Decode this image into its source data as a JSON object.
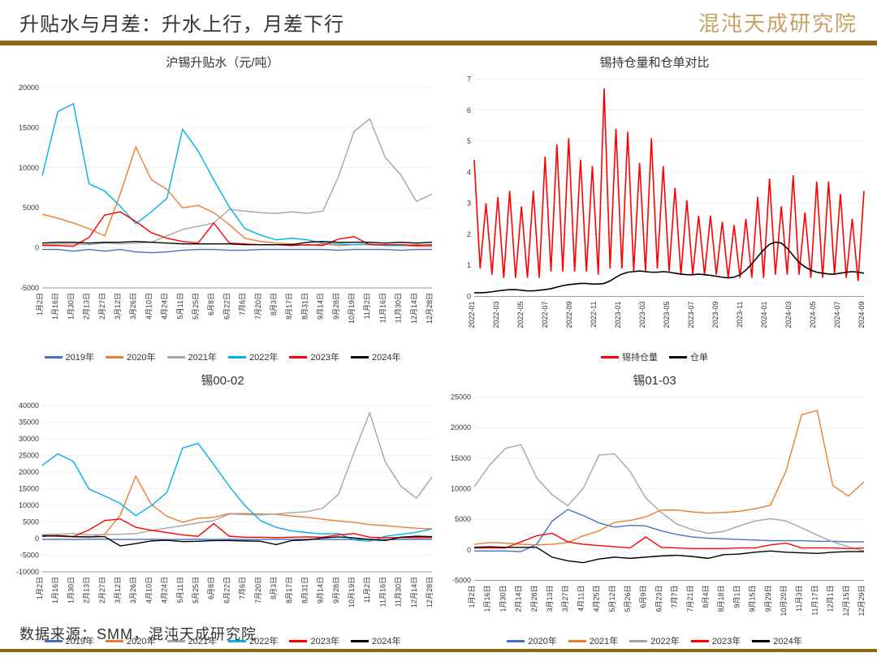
{
  "header": {
    "title": "升贴水与月差：升水上行，月差下行",
    "institute": "混沌天成研究院"
  },
  "footer": "数据来源：SMM，混沌天成研究院",
  "colors": {
    "2019": "#4472c4",
    "2020": "#ed7d31",
    "2021": "#a5a5a5",
    "2022": "#00b0f0",
    "2023": "#ff0000",
    "2024": "#000000",
    "position": "#ff0000",
    "warrant": "#000000",
    "grid": "#e0e0e0",
    "axis": "#999999",
    "bg": "#ffffff",
    "accent_bar": "#8b6914"
  },
  "charts": {
    "premium": {
      "title": "沪锡升贴水（元/吨）",
      "ylim": [
        -5000,
        20000
      ],
      "yticks": [
        -5000,
        0,
        5000,
        10000,
        15000,
        20000
      ],
      "xlabels": [
        "1月2日",
        "1月16日",
        "1月30日",
        "2月13日",
        "2月27日",
        "3月12日",
        "3月26日",
        "4月10日",
        "4月24日",
        "5月11日",
        "5月25日",
        "6月8日",
        "6月22日",
        "7月6日",
        "7月20日",
        "8月3日",
        "8月17日",
        "8月31日",
        "9月14日",
        "9月28日",
        "10月19日",
        "11月2日",
        "11月16日",
        "11月30日",
        "12月14日",
        "12月28日"
      ],
      "series": {
        "2019": [
          -200,
          -200,
          -400,
          -200,
          -400,
          -200,
          -500,
          -600,
          -500,
          -300,
          -200,
          -200,
          -300,
          -300,
          -200,
          -200,
          -200,
          -200,
          -200,
          -300,
          -200,
          -200,
          -200,
          -300,
          -200,
          -200
        ],
        "2020": [
          4200,
          3700,
          3100,
          2400,
          1500,
          6700,
          12600,
          8500,
          7300,
          5000,
          5300,
          4400,
          2900,
          1200,
          800,
          600,
          500,
          300,
          500,
          300,
          400,
          400,
          300,
          300,
          200,
          200
        ],
        "2021": [
          400,
          500,
          500,
          400,
          600,
          500,
          600,
          700,
          1500,
          2300,
          2700,
          3100,
          4800,
          4600,
          4400,
          4300,
          4500,
          4300,
          4600,
          8900,
          14500,
          16100,
          11300,
          9100,
          5800,
          6700
        ],
        "2022": [
          9000,
          17000,
          18000,
          8000,
          7100,
          5200,
          3000,
          4500,
          6200,
          14800,
          12100,
          8500,
          5100,
          2400,
          1600,
          1000,
          1200,
          1000,
          600,
          500,
          400,
          500,
          300,
          300,
          400,
          300
        ],
        "2023": [
          300,
          300,
          200,
          1300,
          4100,
          4500,
          3300,
          1900,
          1200,
          800,
          600,
          3100,
          600,
          500,
          400,
          400,
          300,
          400,
          300,
          1100,
          1400,
          400,
          400,
          400,
          300,
          400
        ],
        "2024": [
          600,
          700,
          700,
          600,
          700,
          700,
          800,
          700,
          600,
          500,
          500,
          500,
          500,
          400,
          400,
          400,
          400,
          700,
          800,
          700,
          700,
          700,
          600,
          700,
          600,
          700
        ]
      },
      "legend": [
        "2019年",
        "2020年",
        "2021年",
        "2022年",
        "2023年",
        "2024年"
      ],
      "legend_colors": [
        "#4472c4",
        "#ed7d31",
        "#a5a5a5",
        "#00b0f0",
        "#ff0000",
        "#000000"
      ]
    },
    "position": {
      "title": "锡持仓量和仓单对比",
      "ylim": [
        0,
        7
      ],
      "yticks": [
        0,
        1,
        2,
        3,
        4,
        5,
        6,
        7
      ],
      "xlabels": [
        "2022-01",
        "2022-03",
        "2022-05",
        "2022-07",
        "2022-09",
        "2022-11",
        "2023-01",
        "2023-03",
        "2023-05",
        "2023-07",
        "2023-09",
        "2023-11",
        "2024-01",
        "2024-03",
        "2024-05",
        "2024-07",
        "2024-09"
      ],
      "series": {
        "position": [
          4.4,
          0.9,
          3.0,
          0.7,
          3.2,
          0.6,
          3.4,
          0.6,
          2.9,
          0.6,
          3.4,
          0.6,
          4.5,
          0.8,
          4.9,
          0.8,
          5.1,
          0.8,
          4.4,
          0.8,
          4.2,
          0.7,
          6.7,
          0.9,
          5.4,
          0.9,
          5.3,
          0.8,
          4.3,
          0.8,
          5.1,
          0.9,
          4.2,
          0.8,
          3.5,
          0.7,
          3.1,
          0.7,
          2.6,
          0.7,
          2.6,
          0.7,
          2.4,
          0.6,
          2.3,
          0.6,
          2.5,
          0.6,
          3.2,
          0.6,
          3.8,
          0.7,
          2.9,
          0.7,
          3.9,
          0.7,
          2.7,
          0.6,
          3.7,
          0.6,
          3.7,
          0.7,
          3.3,
          0.6,
          2.5,
          0.5,
          3.4
        ],
        "warrant": [
          0.12,
          0.12,
          0.13,
          0.15,
          0.18,
          0.2,
          0.22,
          0.22,
          0.2,
          0.18,
          0.18,
          0.2,
          0.22,
          0.25,
          0.3,
          0.35,
          0.38,
          0.4,
          0.42,
          0.42,
          0.4,
          0.4,
          0.42,
          0.5,
          0.62,
          0.72,
          0.78,
          0.8,
          0.82,
          0.8,
          0.78,
          0.78,
          0.8,
          0.78,
          0.75,
          0.72,
          0.7,
          0.7,
          0.72,
          0.7,
          0.68,
          0.65,
          0.62,
          0.6,
          0.62,
          0.7,
          0.85,
          1.05,
          1.28,
          1.5,
          1.68,
          1.75,
          1.72,
          1.55,
          1.32,
          1.1,
          0.95,
          0.85,
          0.78,
          0.75,
          0.72,
          0.72,
          0.75,
          0.78,
          0.8,
          0.78,
          0.75
        ]
      },
      "legend": [
        "锡持仓量",
        "仓单"
      ],
      "legend_colors": [
        "#ff0000",
        "#000000"
      ]
    },
    "spread0002": {
      "title": "锡00-02",
      "ylim": [
        -10000,
        40000
      ],
      "yticks": [
        -10000,
        -5000,
        0,
        5000,
        10000,
        15000,
        20000,
        25000,
        30000,
        35000,
        40000
      ],
      "xlabels": [
        "1月2日",
        "1月16日",
        "1月30日",
        "2月13日",
        "2月27日",
        "3月12日",
        "3月26日",
        "4月10日",
        "4月24日",
        "5月11日",
        "5月25日",
        "6月8日",
        "6月22日",
        "7月6日",
        "7月20日",
        "8月3日",
        "8月17日",
        "8月31日",
        "9月14日",
        "9月28日",
        "10月19日",
        "11月2日",
        "11月16日",
        "11月30日",
        "12月14日",
        "12月28日"
      ],
      "series": {
        "2019": [
          -300,
          -200,
          -300,
          -200,
          -200,
          -300,
          -300,
          -200,
          -300,
          -300,
          -200,
          -300,
          -200,
          -300,
          -300,
          -200,
          -300,
          -200,
          -300,
          -300,
          -300,
          -200,
          -300,
          -300,
          -200,
          -300
        ],
        "2020": [
          1100,
          700,
          500,
          400,
          1300,
          7000,
          18800,
          10200,
          6700,
          4900,
          6100,
          6400,
          7500,
          7500,
          7400,
          7300,
          6800,
          6400,
          5800,
          5300,
          4900,
          4200,
          3900,
          3500,
          3100,
          2900
        ],
        "2021": [
          1200,
          1300,
          1500,
          1100,
          1200,
          1300,
          1500,
          2400,
          3200,
          3900,
          4700,
          5400,
          7400,
          7200,
          7100,
          7400,
          7800,
          8100,
          9200,
          13300,
          25900,
          37800,
          23100,
          15800,
          12100,
          18500
        ],
        "2022": [
          22000,
          25500,
          23200,
          14900,
          12800,
          10600,
          6900,
          9900,
          13900,
          27200,
          28600,
          22300,
          15700,
          9900,
          5400,
          3400,
          2300,
          1800,
          1400,
          1500,
          -400,
          -800,
          700,
          1300,
          1900,
          2900
        ],
        "2023": [
          900,
          700,
          600,
          2600,
          5400,
          5900,
          3400,
          2500,
          1800,
          1100,
          700,
          4500,
          700,
          400,
          400,
          300,
          400,
          500,
          400,
          1100,
          1500,
          400,
          300,
          300,
          300,
          300
        ],
        "2024": [
          700,
          900,
          600,
          500,
          600,
          -2200,
          -1500,
          -700,
          -500,
          -900,
          -800,
          -600,
          -600,
          -700,
          -800,
          -1800,
          -600,
          -400,
          200,
          500,
          200,
          -300,
          -600,
          400,
          700,
          600
        ]
      },
      "legend": [
        "2019年",
        "2020年",
        "2021年",
        "2022年",
        "2023年",
        "2024年"
      ],
      "legend_colors": [
        "#4472c4",
        "#ed7d31",
        "#a5a5a5",
        "#00b0f0",
        "#ff0000",
        "#000000"
      ]
    },
    "spread0103": {
      "title": "锡01-03",
      "ylim": [
        -5000,
        25000
      ],
      "yticks": [
        -5000,
        0,
        5000,
        10000,
        15000,
        20000,
        25000
      ],
      "xlabels": [
        "1月2日",
        "1月16日",
        "1月30日",
        "2月14日",
        "2月28日",
        "3月13日",
        "3月27日",
        "4月11日",
        "4月25日",
        "5月12日",
        "5月26日",
        "6月9日",
        "6月23日",
        "7月7日",
        "7月21日",
        "8月4日",
        "8月18日",
        "9月1日",
        "9月15日",
        "9月29日",
        "10月20日",
        "11月3日",
        "11月17日",
        "12月1日",
        "12月15日",
        "12月29日"
      ],
      "series": {
        "2020": [
          -200,
          -200,
          -200,
          -300,
          900,
          4700,
          6600,
          5600,
          4400,
          3700,
          4000,
          3900,
          3100,
          2500,
          2100,
          1900,
          1800,
          1700,
          1600,
          1500,
          1500,
          1500,
          1400,
          1400,
          1300,
          1300
        ],
        "2021": [
          900,
          1200,
          1100,
          900,
          800,
          900,
          1200,
          2300,
          3100,
          4500,
          4800,
          5400,
          6500,
          6500,
          6200,
          6000,
          6100,
          6300,
          6700,
          7300,
          12900,
          22100,
          22800,
          10500,
          8800,
          11100
        ],
        "2022": [
          10300,
          13900,
          16600,
          17200,
          11800,
          9000,
          7200,
          10100,
          15500,
          15700,
          12800,
          8500,
          6100,
          4200,
          3300,
          2700,
          3000,
          3900,
          4700,
          5100,
          4700,
          3600,
          2400,
          1300,
          500,
          -200
        ],
        "2023": [
          300,
          300,
          300,
          1300,
          2300,
          2700,
          1300,
          900,
          700,
          500,
          300,
          2100,
          400,
          300,
          200,
          200,
          200,
          300,
          300,
          800,
          1100,
          300,
          300,
          300,
          200,
          300
        ],
        "2024": [
          400,
          500,
          400,
          400,
          400,
          -1200,
          -1800,
          -2100,
          -1500,
          -1200,
          -1400,
          -1200,
          -1000,
          -900,
          -1100,
          -1400,
          -800,
          -700,
          -400,
          -200,
          -400,
          -500,
          -600,
          -400,
          -300,
          -300
        ]
      },
      "legend": [
        "2020年",
        "2021年",
        "2022年",
        "2023年",
        "2024年"
      ],
      "legend_colors": [
        "#4472c4",
        "#ed7d31",
        "#a5a5a5",
        "#ff0000",
        "#000000"
      ]
    }
  }
}
